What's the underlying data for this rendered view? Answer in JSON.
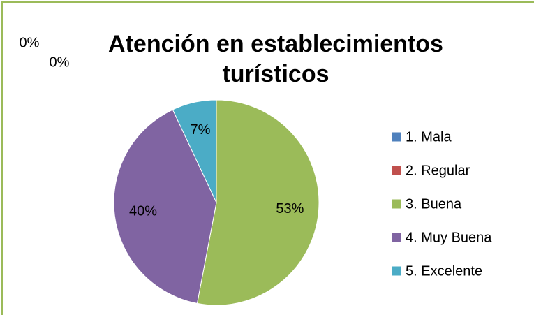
{
  "chart_data": {
    "type": "pie",
    "title": "Atención en establecimientos turísticos",
    "categories": [
      "1. Mala",
      "2. Regular",
      "3. Buena",
      "4. Muy Buena",
      "5. Excelente"
    ],
    "values": [
      0,
      0,
      53,
      40,
      7
    ],
    "value_labels": [
      "0%",
      "0%",
      "53%",
      "40%",
      "7%"
    ],
    "colors": [
      "#4f81bd",
      "#c0504d",
      "#9bbb59",
      "#8064a2",
      "#4bacc6"
    ],
    "legend": "right"
  }
}
